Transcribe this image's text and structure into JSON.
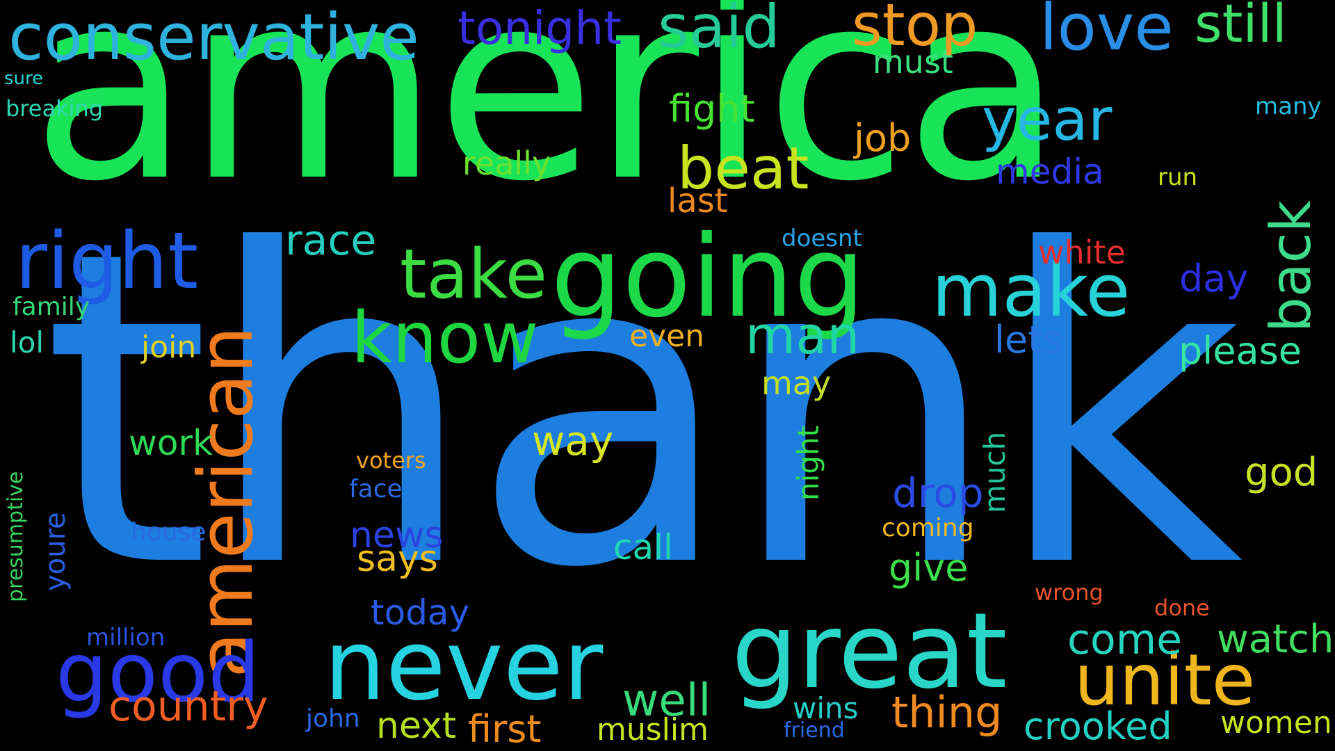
{
  "words": [
    {
      "t": "thank",
      "c": "#1e7ee0"
    },
    {
      "t": "america",
      "c": "#19e457"
    },
    {
      "t": "going",
      "c": "#1dd94a"
    },
    {
      "t": "never",
      "c": "#27d2e1"
    },
    {
      "t": "great",
      "c": "#2ad6c8"
    },
    {
      "t": "conservative",
      "c": "#2fb2de"
    },
    {
      "t": "american",
      "c": "#f07b1f"
    },
    {
      "t": "good",
      "c": "#2a39e6"
    },
    {
      "t": "right",
      "c": "#1f5ce6"
    },
    {
      "t": "take",
      "c": "#3cdd42"
    },
    {
      "t": "make",
      "c": "#27d3d8"
    },
    {
      "t": "know",
      "c": "#1ed63f"
    },
    {
      "t": "unite",
      "c": "#f0b61e"
    },
    {
      "t": "love",
      "c": "#2a8ee6"
    },
    {
      "t": "said",
      "c": "#26cc97"
    },
    {
      "t": "stop",
      "c": "#ee9a24"
    },
    {
      "t": "still",
      "c": "#3fe06a"
    },
    {
      "t": "beat",
      "c": "#c8e320"
    },
    {
      "t": "year",
      "c": "#26b7e4"
    },
    {
      "t": "tonight",
      "c": "#3a2fe0"
    },
    {
      "t": "back",
      "c": "#3ddb8a"
    },
    {
      "t": "country",
      "c": "#f05e24"
    },
    {
      "t": "well",
      "c": "#38dc7a"
    },
    {
      "t": "come",
      "c": "#27d5c0"
    },
    {
      "t": "watch",
      "c": "#41de60"
    },
    {
      "t": "crooked",
      "c": "#23d2c4"
    },
    {
      "t": "man",
      "c": "#21d5a5"
    },
    {
      "t": "race",
      "c": "#25cfc0"
    },
    {
      "t": "thing",
      "c": "#f08a22"
    },
    {
      "t": "first",
      "c": "#ee8c20"
    },
    {
      "t": "next",
      "c": "#b7e021"
    },
    {
      "t": "muslim",
      "c": "#c4e622"
    },
    {
      "t": "news",
      "c": "#2a43e0"
    },
    {
      "t": "drop",
      "c": "#2a4ae4"
    },
    {
      "t": "way",
      "c": "#d7e622"
    },
    {
      "t": "fight",
      "c": "#48e233"
    },
    {
      "t": "work",
      "c": "#2ed956"
    },
    {
      "t": "today",
      "c": "#2a5be2"
    },
    {
      "t": "media",
      "c": "#3039e6"
    },
    {
      "t": "please",
      "c": "#36e4a1"
    },
    {
      "t": "give",
      "c": "#3ce04b"
    },
    {
      "t": "call",
      "c": "#20d8b0"
    },
    {
      "t": "says",
      "c": "#f0bd22"
    },
    {
      "t": "white",
      "c": "#e42d2d"
    },
    {
      "t": "day",
      "c": "#2b2fe0"
    },
    {
      "t": "god",
      "c": "#c8e226"
    },
    {
      "t": "lets",
      "c": "#2a77e2"
    },
    {
      "t": "last",
      "c": "#ee8a20"
    },
    {
      "t": "job",
      "c": "#f0a020"
    },
    {
      "t": "really",
      "c": "#6be02f"
    },
    {
      "t": "must",
      "c": "#3ae07e"
    },
    {
      "t": "women",
      "c": "#c5e520"
    },
    {
      "t": "wins",
      "c": "#27cfc8"
    },
    {
      "t": "join",
      "c": "#e0d226"
    },
    {
      "t": "even",
      "c": "#f0b020"
    },
    {
      "t": "may",
      "c": "#c5e024"
    },
    {
      "t": "night",
      "c": "#34e048"
    },
    {
      "t": "much",
      "c": "#27c39a"
    },
    {
      "t": "million",
      "c": "#2a55e0"
    },
    {
      "t": "house",
      "c": "#2a6ae0"
    },
    {
      "t": "face",
      "c": "#2a6ae0"
    },
    {
      "t": "coming",
      "c": "#f0b822"
    },
    {
      "t": "family",
      "c": "#37d879"
    },
    {
      "t": "lol",
      "c": "#2fd4b0"
    },
    {
      "t": "doesnt",
      "c": "#2aa4e6"
    },
    {
      "t": "run",
      "c": "#c8e020"
    },
    {
      "t": "many",
      "c": "#27bde0"
    },
    {
      "t": "john",
      "c": "#2a6ae4"
    },
    {
      "t": "friend",
      "c": "#2a6ae6"
    },
    {
      "t": "wrong",
      "c": "#e8542c"
    },
    {
      "t": "done",
      "c": "#e8542c"
    },
    {
      "t": "voters",
      "c": "#f0a420"
    },
    {
      "t": "breaking",
      "c": "#31d8b6"
    },
    {
      "t": "sure",
      "c": "#2bd3d6"
    },
    {
      "t": "youre",
      "c": "#2a5ee0"
    },
    {
      "t": "presumptive",
      "c": "#38d460"
    }
  ]
}
